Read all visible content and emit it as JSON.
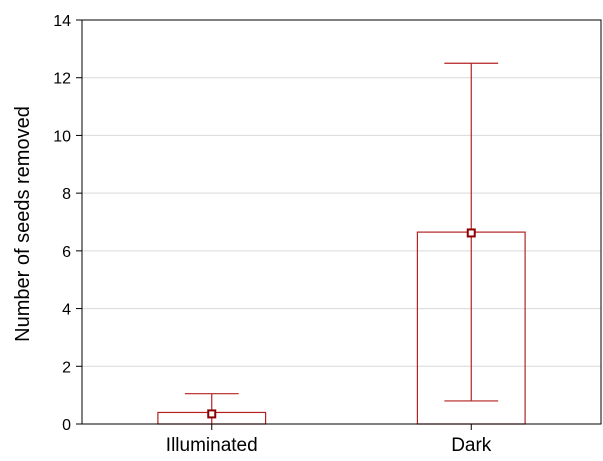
{
  "chart_data": {
    "type": "bar",
    "title": "",
    "xlabel": "",
    "ylabel": "Number of seeds removed",
    "categories": [
      "Illuminated",
      "Dark"
    ],
    "values": [
      0.4,
      6.65
    ],
    "point_values": [
      0.35,
      6.62
    ],
    "error_low": [
      0.0,
      0.8
    ],
    "error_high": [
      1.05,
      12.5
    ],
    "ylim": [
      0,
      14
    ],
    "yticks": [
      0,
      2,
      4,
      6,
      8,
      10,
      12,
      14
    ],
    "grid": true,
    "legend": "none",
    "colors": {
      "bar_stroke": "#b22222",
      "whisker": "#b22222",
      "marker_stroke": "#8b0000",
      "grid": "#d9d9d9",
      "axis": "#000000"
    }
  }
}
